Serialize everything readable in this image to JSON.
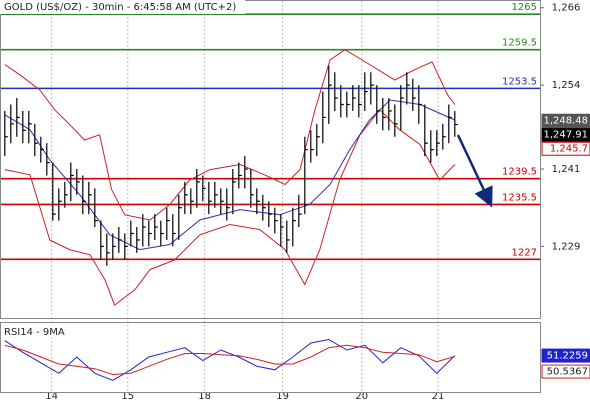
{
  "chart_data": [
    {
      "type": "hlc",
      "title": "GOLD (US$/OZ) - 30min - 6:45:58 AM (UTC+2)",
      "color": "#000000",
      "xlim": [
        -0.8,
        89.2
      ],
      "ylim": [
        1217.9,
        1267.2
      ],
      "yticks": [
        {
          "value": 1266,
          "label": "1,266"
        },
        {
          "value": 1254,
          "label": "1,254"
        },
        {
          "value": 1241,
          "label": "1,241"
        },
        {
          "value": 1229,
          "label": "1,229"
        }
      ],
      "high": [
        1250,
        1251,
        1252,
        1250,
        1250,
        1248,
        1246,
        1245,
        1242,
        1238,
        1239,
        1242,
        1241,
        1240,
        1239,
        1238,
        1233,
        1231,
        1231,
        1232,
        1231,
        1233,
        1232,
        1234,
        1233,
        1234,
        1233,
        1235,
        1234,
        1237,
        1239,
        1238,
        1241,
        1240,
        1239,
        1239,
        1238,
        1238,
        1241,
        1242,
        1243,
        1241,
        1238,
        1237,
        1236,
        1235,
        1234,
        1233,
        1235,
        1237,
        1246,
        1247,
        1248,
        1253,
        1257,
        1256,
        1254,
        1253,
        1254,
        1254,
        1256,
        1256,
        1254,
        1252,
        1252,
        1251,
        1254,
        1256,
        1255,
        1254,
        1251,
        1247,
        1247,
        1248,
        1251,
        1250
      ],
      "low": [
        1243,
        1245,
        1246,
        1245,
        1245,
        1243,
        1242,
        1240,
        1233,
        1233,
        1235,
        1236,
        1237,
        1234,
        1234,
        1232,
        1227,
        1226,
        1227,
        1228,
        1227,
        1229,
        1228,
        1229,
        1229,
        1230,
        1229,
        1230,
        1229,
        1230,
        1234,
        1234,
        1235,
        1236,
        1234,
        1235,
        1234,
        1233,
        1234,
        1238,
        1238,
        1235,
        1234,
        1233,
        1232,
        1231,
        1229,
        1228,
        1229,
        1232,
        1234,
        1242,
        1243,
        1245,
        1248,
        1250,
        1249,
        1249,
        1250,
        1249,
        1250,
        1251,
        1248,
        1247,
        1247,
        1246,
        1247,
        1251,
        1250,
        1248,
        1243,
        1242,
        1243,
        1244,
        1245,
        1246
      ],
      "close": [
        1246,
        1248,
        1249,
        1247,
        1248,
        1245,
        1244,
        1242,
        1234,
        1236,
        1237,
        1240,
        1239,
        1236,
        1237,
        1233,
        1229,
        1228,
        1229,
        1230,
        1229,
        1231,
        1230,
        1232,
        1231,
        1232,
        1231,
        1233,
        1231,
        1235,
        1237,
        1236,
        1239,
        1238,
        1236,
        1237,
        1236,
        1235,
        1239,
        1240,
        1241,
        1237,
        1236,
        1235,
        1234,
        1233,
        1232,
        1230,
        1233,
        1234,
        1244,
        1244,
        1246,
        1249,
        1254,
        1252,
        1251,
        1251,
        1252,
        1251,
        1253,
        1254,
        1250,
        1249,
        1250,
        1248,
        1252,
        1254,
        1252,
        1251,
        1245,
        1244,
        1245,
        1246,
        1249,
        1247.9
      ],
      "overlays": [
        {
          "color": "#cc2222",
          "x": [
            0,
            2.5,
            5.8,
            8.3,
            10.8,
            13.3,
            15.8,
            17.8,
            20,
            24.2,
            27.5,
            30.8,
            34.2,
            39.2,
            43.3,
            46.7,
            49.2,
            51.7,
            54.2,
            56.7,
            60.8,
            65,
            68.3,
            71.2,
            73.8,
            75
          ],
          "values": [
            1257.2,
            1255.6,
            1253.3,
            1250.2,
            1247.9,
            1245.5,
            1246.3,
            1237.8,
            1233.9,
            1233.1,
            1235.5,
            1239.3,
            1240.9,
            1241.7,
            1240.1,
            1238.6,
            1240.9,
            1250.2,
            1257.9,
            1259.5,
            1257.2,
            1254.8,
            1256.4,
            1257.6,
            1252.5,
            1251.0
          ]
        },
        {
          "color": "#cc2222",
          "x": [
            0,
            4.2,
            7.5,
            10.8,
            14.2,
            16.7,
            18.3,
            21.7,
            24.2,
            28.3,
            32.5,
            37.5,
            42.5,
            46.7,
            50,
            52.5,
            55.8,
            59.2,
            62.5,
            65.8,
            69.2,
            72.5,
            75
          ],
          "values": [
            1240.9,
            1240.1,
            1230.0,
            1228.5,
            1227.7,
            1223.8,
            1219.9,
            1222.3,
            1225.4,
            1226.9,
            1230.8,
            1232.4,
            1231.6,
            1228.5,
            1223.1,
            1228.5,
            1239.3,
            1246.3,
            1250.2,
            1247.1,
            1244.8,
            1239.3,
            1241.7
          ]
        },
        {
          "color": "#2233bb",
          "x": [
            0,
            4.2,
            7.5,
            12.5,
            17.5,
            22.5,
            27.5,
            32.5,
            39.2,
            45.8,
            50.8,
            54.2,
            57.5,
            60.8,
            64.2,
            69.2,
            75
          ],
          "values": [
            1249.4,
            1247.1,
            1242.4,
            1237.0,
            1230.8,
            1228.5,
            1229.3,
            1233.1,
            1234.7,
            1233.9,
            1235.5,
            1238.6,
            1244.0,
            1248.6,
            1251.7,
            1251.0,
            1248.6
          ]
        }
      ],
      "levels": [
        {
          "value": 1265,
          "color": "#228b22"
        },
        {
          "value": 1259.5,
          "color": "#228b22"
        },
        {
          "value": 1253.5,
          "color": "#1f2fbf"
        },
        {
          "value": 1239.5,
          "color": "#cc0000"
        },
        {
          "value": 1235.5,
          "color": "#cc0000"
        },
        {
          "value": 1227,
          "color": "#cc0000"
        }
      ],
      "price_labels": [
        {
          "value": 1248.48,
          "label": "1,248.48",
          "color": "#555555"
        },
        {
          "value": 1247.91,
          "label": "1,247.91",
          "color": "#000000"
        },
        {
          "value": 1245.7,
          "label": "1,245.7",
          "color": "#cc0000"
        }
      ]
    },
    {
      "type": "line",
      "title": "RSI14 - 9MA",
      "xlim": [
        -0.8,
        89.2
      ],
      "ylim": [
        20,
        80
      ],
      "xticks": [
        {
          "value": 7.8,
          "label": "14"
        },
        {
          "value": 20.5,
          "label": "15"
        },
        {
          "value": 33.3,
          "label": "18"
        },
        {
          "value": 46.3,
          "label": "19"
        },
        {
          "value": 59.5,
          "label": "20"
        },
        {
          "value": 72.2,
          "label": "21"
        }
      ],
      "series": [
        {
          "color": "#2222cc",
          "x": [
            0,
            3,
            6,
            9,
            12,
            15,
            18,
            21,
            24,
            27,
            30,
            33,
            36,
            39,
            42,
            45,
            48,
            51,
            54,
            57,
            60,
            63,
            66,
            69,
            72,
            75
          ],
          "values": [
            64,
            54,
            45,
            36,
            50,
            36,
            30,
            39,
            50,
            54,
            58,
            47,
            56,
            50,
            42,
            39,
            50,
            62,
            65,
            56,
            60,
            45,
            58,
            51,
            36,
            51.2
          ]
        },
        {
          "color": "#cc2222",
          "x": [
            0,
            3,
            6,
            9,
            12,
            15,
            18,
            21,
            24,
            27,
            30,
            33,
            36,
            39,
            42,
            45,
            48,
            51,
            54,
            57,
            60,
            63,
            66,
            69,
            72,
            75
          ],
          "values": [
            60,
            56,
            50,
            44,
            42,
            40,
            35,
            36,
            42,
            48,
            53,
            53,
            52,
            51,
            48,
            44,
            44,
            50,
            58,
            60,
            58,
            54,
            53,
            52,
            46,
            50.5
          ]
        }
      ],
      "value_boxes": [
        {
          "value": 51.2259,
          "color": "#2222cc"
        },
        {
          "value": 50.5367,
          "color": "#cc2222"
        }
      ]
    }
  ]
}
